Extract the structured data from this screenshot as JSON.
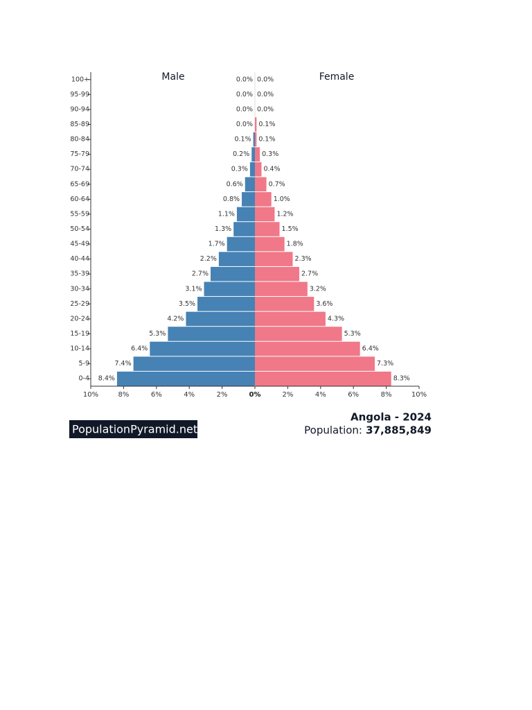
{
  "chart_data": {
    "type": "pyramid",
    "title": "Angola - 2024",
    "population_label": "Population:",
    "population": "37,885,849",
    "source": "PopulationPyramid.net",
    "categories": [
      "100+",
      "95-99",
      "90-94",
      "85-89",
      "80-84",
      "75-79",
      "70-74",
      "65-69",
      "60-64",
      "55-59",
      "50-54",
      "45-49",
      "40-44",
      "35-39",
      "30-34",
      "25-29",
      "20-24",
      "15-19",
      "10-14",
      "5-9",
      "0-4"
    ],
    "series": [
      {
        "name": "Male",
        "color": "#4682b4",
        "values": [
          0.0,
          0.0,
          0.0,
          0.0,
          0.1,
          0.2,
          0.3,
          0.6,
          0.8,
          1.1,
          1.3,
          1.7,
          2.2,
          2.7,
          3.1,
          3.5,
          4.2,
          5.3,
          6.4,
          7.4,
          8.4
        ],
        "value_labels": [
          "0.0%",
          "0.0%",
          "0.0%",
          "0.0%",
          "0.1%",
          "0.2%",
          "0.3%",
          "0.6%",
          "0.8%",
          "1.1%",
          "1.3%",
          "1.7%",
          "2.2%",
          "2.7%",
          "3.1%",
          "3.5%",
          "4.2%",
          "5.3%",
          "6.4%",
          "7.4%",
          "8.4%"
        ]
      },
      {
        "name": "Female",
        "color": "#f07888",
        "values": [
          0.0,
          0.0,
          0.0,
          0.1,
          0.1,
          0.3,
          0.4,
          0.7,
          1.0,
          1.2,
          1.5,
          1.8,
          2.3,
          2.7,
          3.2,
          3.6,
          4.3,
          5.3,
          6.4,
          7.3,
          8.3
        ],
        "value_labels": [
          "0.0%",
          "0.0%",
          "0.0%",
          "0.1%",
          "0.1%",
          "0.3%",
          "0.4%",
          "0.7%",
          "1.0%",
          "1.2%",
          "1.5%",
          "1.8%",
          "2.3%",
          "2.7%",
          "3.2%",
          "3.6%",
          "4.3%",
          "5.3%",
          "6.4%",
          "7.3%",
          "8.3%"
        ]
      }
    ],
    "xlim": [
      0,
      10
    ],
    "xticks": [
      {
        "value": 10,
        "label": "10%"
      },
      {
        "value": 8,
        "label": "8%"
      },
      {
        "value": 6,
        "label": "6%"
      },
      {
        "value": 4,
        "label": "4%"
      },
      {
        "value": 2,
        "label": "2%"
      },
      {
        "value": 0,
        "label": "0%"
      }
    ]
  }
}
